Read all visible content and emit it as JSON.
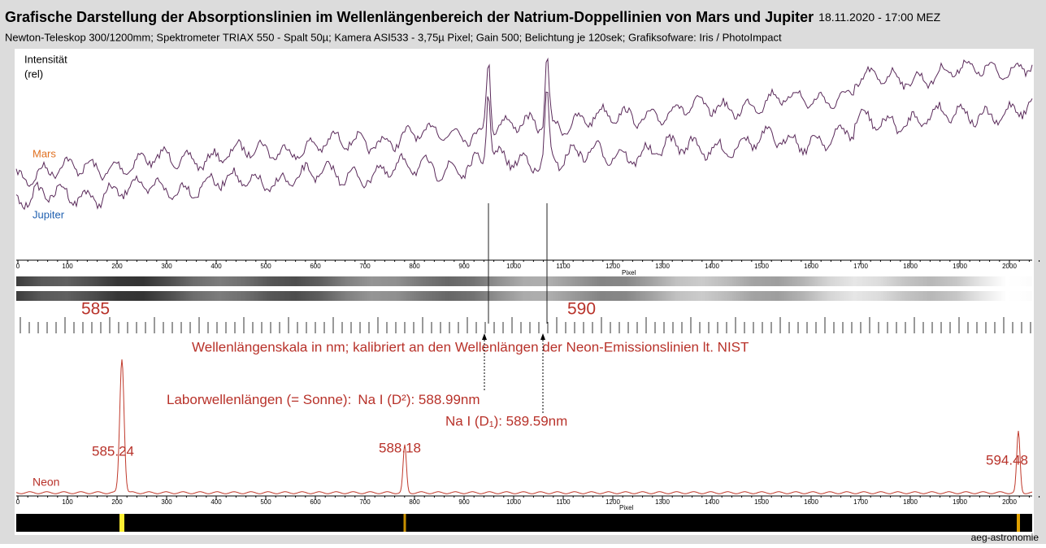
{
  "header": {
    "title": "Grafische Darstellung der Absorptionslinien im Wellenlängenbereich der Natrium-Doppellinien von Mars und Jupiter",
    "date": "18.11.2020 - 17:00 MEZ",
    "subtitle": "Newton-Teleskop 300/1200mm; Spektrometer TRIAX 550 - Spalt 50µ; Kamera ASI533 - 3,75µ Pixel; Gain 500; Belichtung je 120sek; Grafiksofware: Iris / PhotoImpact"
  },
  "upper_panel": {
    "y_label": "Intensität",
    "y_unit": "(rel)",
    "series": [
      "Mars",
      "Jupiter"
    ],
    "pixel_ticks": [
      0,
      100,
      200,
      300,
      400,
      500,
      600,
      700,
      800,
      900,
      1000,
      1100,
      1200,
      1300,
      1400,
      1500,
      1600,
      1700,
      1800,
      1900,
      2000
    ],
    "x_label": "Pixel"
  },
  "wavelength_scale": {
    "labels": [
      "585",
      "590"
    ],
    "caption": "Wellenlängenskala in nm; kalibriert an den Wellenlängen der Neon-Emissionslinien lt. NIST"
  },
  "lab_wavelengths": {
    "intro": "Laborwellenlängen (= Sonne):",
    "d2": "Na I (D²): 588.99nm",
    "d1": "Na I (D₁): 589.59nm"
  },
  "neon_panel": {
    "name": "Neon",
    "lines": [
      "585.24",
      "588.18",
      "594.48"
    ],
    "pixel_ticks": [
      0,
      100,
      200,
      300,
      400,
      500,
      600,
      700,
      800,
      900,
      1000,
      1100,
      1200,
      1300,
      1400,
      1500,
      1600,
      1700,
      1800,
      1900,
      2000
    ],
    "x_label": "Pixel"
  },
  "credit": "aeg-astronomie"
}
